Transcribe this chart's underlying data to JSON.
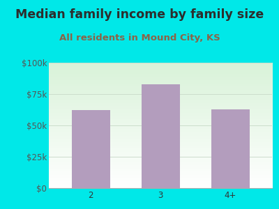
{
  "title": "Median family income by family size",
  "subtitle": "All residents in Mound City, KS",
  "categories": [
    "2",
    "3",
    "4+"
  ],
  "values": [
    62000,
    83000,
    63000
  ],
  "bar_color": "#b39dbd",
  "background_color": "#00e8e8",
  "plot_bg_top": "#d4edda",
  "plot_bg_bottom": "#f5fff5",
  "title_color": "#2d2d2d",
  "subtitle_color": "#8b6347",
  "axis_label_color": "#6b8e6b",
  "tick_label_color": "#5a7a5a",
  "ylim": [
    0,
    100000
  ],
  "yticks": [
    0,
    25000,
    50000,
    75000,
    100000
  ],
  "ytick_labels": [
    "$0",
    "$25k",
    "$50k",
    "$75k",
    "$100k"
  ],
  "title_fontsize": 12.5,
  "subtitle_fontsize": 9.5,
  "tick_fontsize": 8.5,
  "grid_color": "#ccddcc",
  "spine_color": "#aaaaaa"
}
